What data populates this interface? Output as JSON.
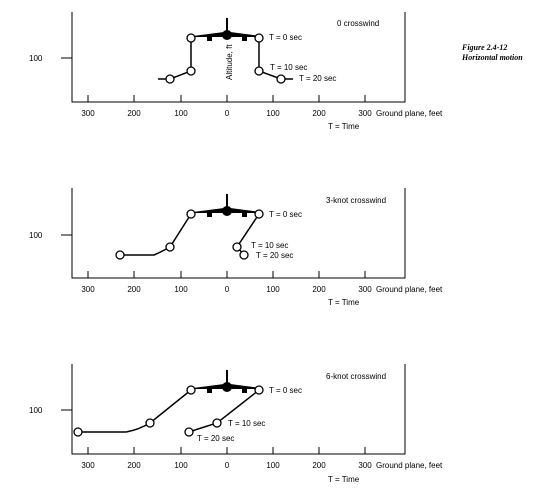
{
  "figure": {
    "number": "Figure 2.4-12",
    "title": "Horizontal motion"
  },
  "panels": [
    {
      "title": "0 crosswind",
      "altitude_label": "Altitude, ft",
      "y_tick": "100",
      "x_ticks": [
        "300",
        "200",
        "100",
        "0",
        "100",
        "200",
        "300"
      ],
      "ground_plane_label": "Ground plane, feet",
      "time_label": "T = Time",
      "time_labels": [
        "T = 0 sec",
        "T = 10 sec",
        "T = 20 sec"
      ]
    },
    {
      "title": "3-knot crosswind",
      "y_tick": "100",
      "x_ticks": [
        "300",
        "200",
        "100",
        "0",
        "100",
        "200",
        "300"
      ],
      "ground_plane_label": "Ground plane, feet",
      "time_label": "T = Time",
      "time_labels": [
        "T = 0 sec",
        "T = 10 sec",
        "T = 20 sec"
      ]
    },
    {
      "title": "6-knot crosswind",
      "y_tick": "100",
      "x_ticks": [
        "300",
        "200",
        "100",
        "0",
        "100",
        "200",
        "300"
      ],
      "ground_plane_label": "Ground plane, feet",
      "time_label": "T = Time",
      "time_labels": [
        "T = 0 sec",
        "T = 10 sec",
        "T = 20 sec"
      ]
    }
  ]
}
